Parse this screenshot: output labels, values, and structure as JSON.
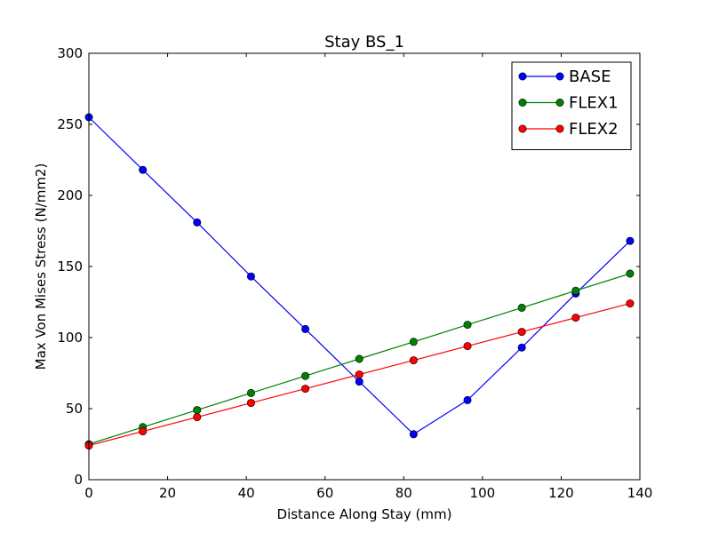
{
  "chart_data": {
    "type": "line",
    "title": "Stay BS_1",
    "xlabel": "Distance Along Stay (mm)",
    "ylabel": "Max Von Mises Stress (N/mm2)",
    "xlim": [
      0,
      140
    ],
    "ylim": [
      0,
      300
    ],
    "xticks": [
      0,
      20,
      40,
      60,
      80,
      100,
      120,
      140
    ],
    "yticks": [
      0,
      50,
      100,
      150,
      200,
      250,
      300
    ],
    "grid": false,
    "legend_position": "top-right",
    "x": [
      0,
      13.7,
      27.5,
      41.2,
      55.0,
      68.7,
      82.5,
      96.2,
      110.0,
      123.7,
      137.5
    ],
    "series": [
      {
        "name": "BASE",
        "color": "#0000ff",
        "values": [
          255,
          218,
          181,
          143,
          106,
          69,
          32,
          56,
          93,
          131,
          168
        ]
      },
      {
        "name": "FLEX1",
        "color": "#008000",
        "values": [
          25,
          37,
          49,
          61,
          73,
          85,
          97,
          109,
          121,
          133,
          145
        ]
      },
      {
        "name": "FLEX2",
        "color": "#ff0000",
        "values": [
          24,
          34,
          44,
          54,
          64,
          74,
          84,
          94,
          104,
          114,
          124
        ]
      }
    ]
  }
}
